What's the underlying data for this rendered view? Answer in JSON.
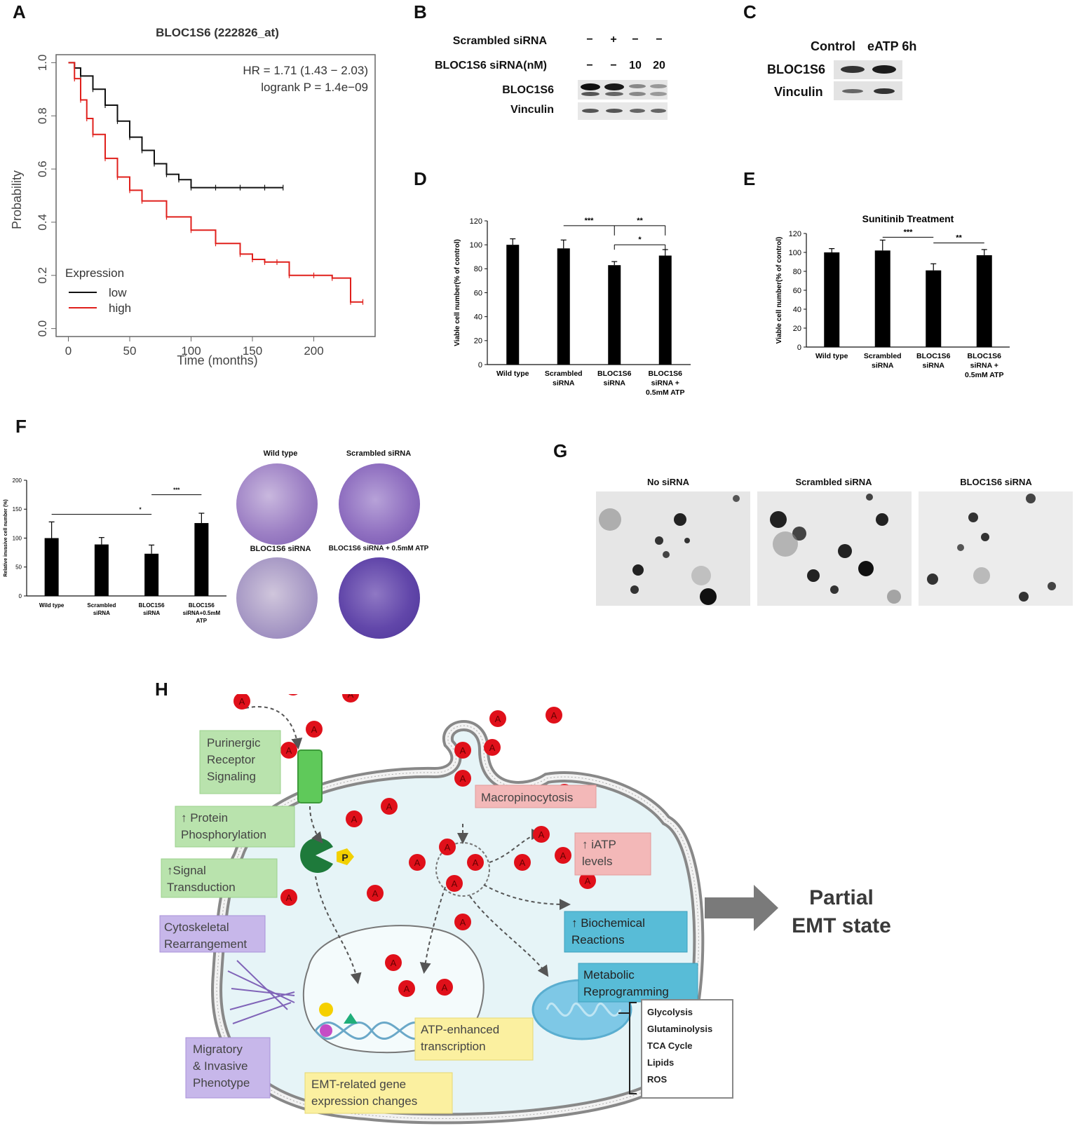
{
  "panel_letters": [
    "A",
    "B",
    "C",
    "D",
    "E",
    "F",
    "G",
    "H"
  ],
  "panelA": {
    "title": "BLOC1S6 (222826_at)",
    "hr_text": "HR = 1.71 (1.43 − 2.03)",
    "logrank_text": "logrank P = 1.4e−09",
    "legend_title": "Expression",
    "legend_low": "low",
    "legend_high": "high",
    "low_color": "#111111",
    "high_color": "#e0201c"
  },
  "panelB": {
    "row_scrambled": "Scrambled siRNA",
    "row_bloc": "BLOC1S6 siRNA(nM)",
    "scrambled_marks": [
      "−",
      "+",
      "−",
      "−"
    ],
    "bloc_marks": [
      "−",
      "−",
      "10",
      "20"
    ],
    "blot_labels": [
      "BLOC1S6",
      "Vinculin"
    ]
  },
  "panelC": {
    "columns": [
      "Control",
      "eATP 6h"
    ],
    "blot_labels": [
      "BLOC1S6",
      "Vinculin"
    ]
  },
  "panelF": {
    "image_labels": [
      "Wild type",
      "Scrambled siRNA",
      "BLOC1S6 siRNA",
      "BLOC1S6 siRNA + 0.5mM ATP"
    ]
  },
  "panelG": {
    "image_labels": [
      "No siRNA",
      "Scrambled siRNA",
      "BLOC1S6 siRNA"
    ]
  },
  "panelH": {
    "atp_glyph": "A",
    "p_glyph": "P",
    "green_boxes": [
      "Purinergic Receptor Signaling",
      "↑ Protein Phosphorylation",
      "↑Signal Transduction"
    ],
    "purple_boxes": [
      "Cytoskeletal Rearrangement",
      "Migratory & Invasive Phenotype"
    ],
    "pink_boxes": [
      "Macropinocytosis",
      "↑ iATP levels"
    ],
    "blue_boxes": [
      "↑ Biochemical Reactions",
      "Metabolic Reprogramming"
    ],
    "yellow_boxes": [
      "ATP-enhanced transcription",
      "EMT-related gene expression changes"
    ],
    "metabolic_list": [
      "Glycolysis",
      "Glutaminolysis",
      "TCA Cycle",
      "Lipids",
      "ROS"
    ],
    "outcome": "Partial EMT state"
  },
  "chart_data": [
    {
      "id": "A",
      "type": "line",
      "title": "BLOC1S6 (222826_at)",
      "xlabel": "Time (months)",
      "ylabel": "Probability",
      "xlim": [
        -10,
        250
      ],
      "ylim": [
        -0.03,
        1.03
      ],
      "xticks": [
        0,
        50,
        100,
        150,
        200
      ],
      "yticks": [
        0.0,
        0.2,
        0.4,
        0.6,
        0.8,
        1.0
      ],
      "series": [
        {
          "name": "low",
          "x": [
            0,
            5,
            10,
            20,
            30,
            40,
            50,
            60,
            70,
            80,
            90,
            100,
            120,
            140,
            160,
            175
          ],
          "y": [
            1.0,
            0.98,
            0.95,
            0.9,
            0.84,
            0.78,
            0.72,
            0.67,
            0.62,
            0.58,
            0.56,
            0.53,
            0.53,
            0.53,
            0.53,
            0.53
          ]
        },
        {
          "name": "high",
          "x": [
            0,
            5,
            10,
            15,
            20,
            30,
            40,
            50,
            60,
            80,
            100,
            120,
            140,
            150,
            160,
            170,
            180,
            200,
            215,
            230,
            240
          ],
          "y": [
            1.0,
            0.94,
            0.86,
            0.79,
            0.73,
            0.64,
            0.57,
            0.52,
            0.48,
            0.42,
            0.37,
            0.32,
            0.28,
            0.26,
            0.25,
            0.25,
            0.2,
            0.2,
            0.19,
            0.1,
            0.1
          ]
        }
      ]
    },
    {
      "id": "D",
      "type": "bar",
      "title": "",
      "ylabel": "Viable cell number(% of control)",
      "ylim": [
        0,
        120
      ],
      "yticks": [
        0,
        20,
        40,
        60,
        80,
        100,
        120
      ],
      "categories": [
        "Wild type",
        "Scrambled siRNA",
        "BLOC1S6 siRNA",
        "BLOC1S6 siRNA + 0.5mM ATP"
      ],
      "values": [
        100,
        97,
        83,
        91
      ],
      "errors": [
        5,
        7,
        3,
        5
      ],
      "significance": [
        {
          "from": 1,
          "to": 2,
          "label": "***"
        },
        {
          "from": 2,
          "to": 3,
          "label": "**"
        },
        {
          "from": 2,
          "to": 3,
          "label": "*"
        }
      ]
    },
    {
      "id": "E",
      "type": "bar",
      "title": "Sunitinib Treatment",
      "ylabel": "Viable cell number(% of control)",
      "ylim": [
        0,
        120
      ],
      "yticks": [
        0,
        20,
        40,
        60,
        80,
        100,
        120
      ],
      "categories": [
        "Wild type",
        "Scrambled siRNA",
        "BLOC1S6 siRNA",
        "BLOC1S6 siRNA + 0.5mM ATP"
      ],
      "values": [
        100,
        102,
        81,
        97
      ],
      "errors": [
        4,
        11,
        7,
        6
      ],
      "significance": [
        {
          "from": 1,
          "to": 2,
          "label": "***"
        },
        {
          "from": 2,
          "to": 3,
          "label": "**"
        }
      ]
    },
    {
      "id": "F",
      "type": "bar",
      "title": "",
      "ylabel": "Relative invasive cell number (%)",
      "ylim": [
        0,
        200
      ],
      "yticks": [
        0,
        50,
        100,
        150,
        200
      ],
      "categories": [
        "Wild type",
        "Scrambled siRNA",
        "BLOC1S6 siRNA",
        "BLOC1S6 siRNA+0.5mM ATP"
      ],
      "values": [
        100,
        89,
        73,
        126
      ],
      "errors": [
        28,
        12,
        15,
        17
      ],
      "significance": [
        {
          "from": 0,
          "to": 2,
          "label": "*"
        },
        {
          "from": 2,
          "to": 3,
          "label": "***"
        }
      ]
    }
  ]
}
